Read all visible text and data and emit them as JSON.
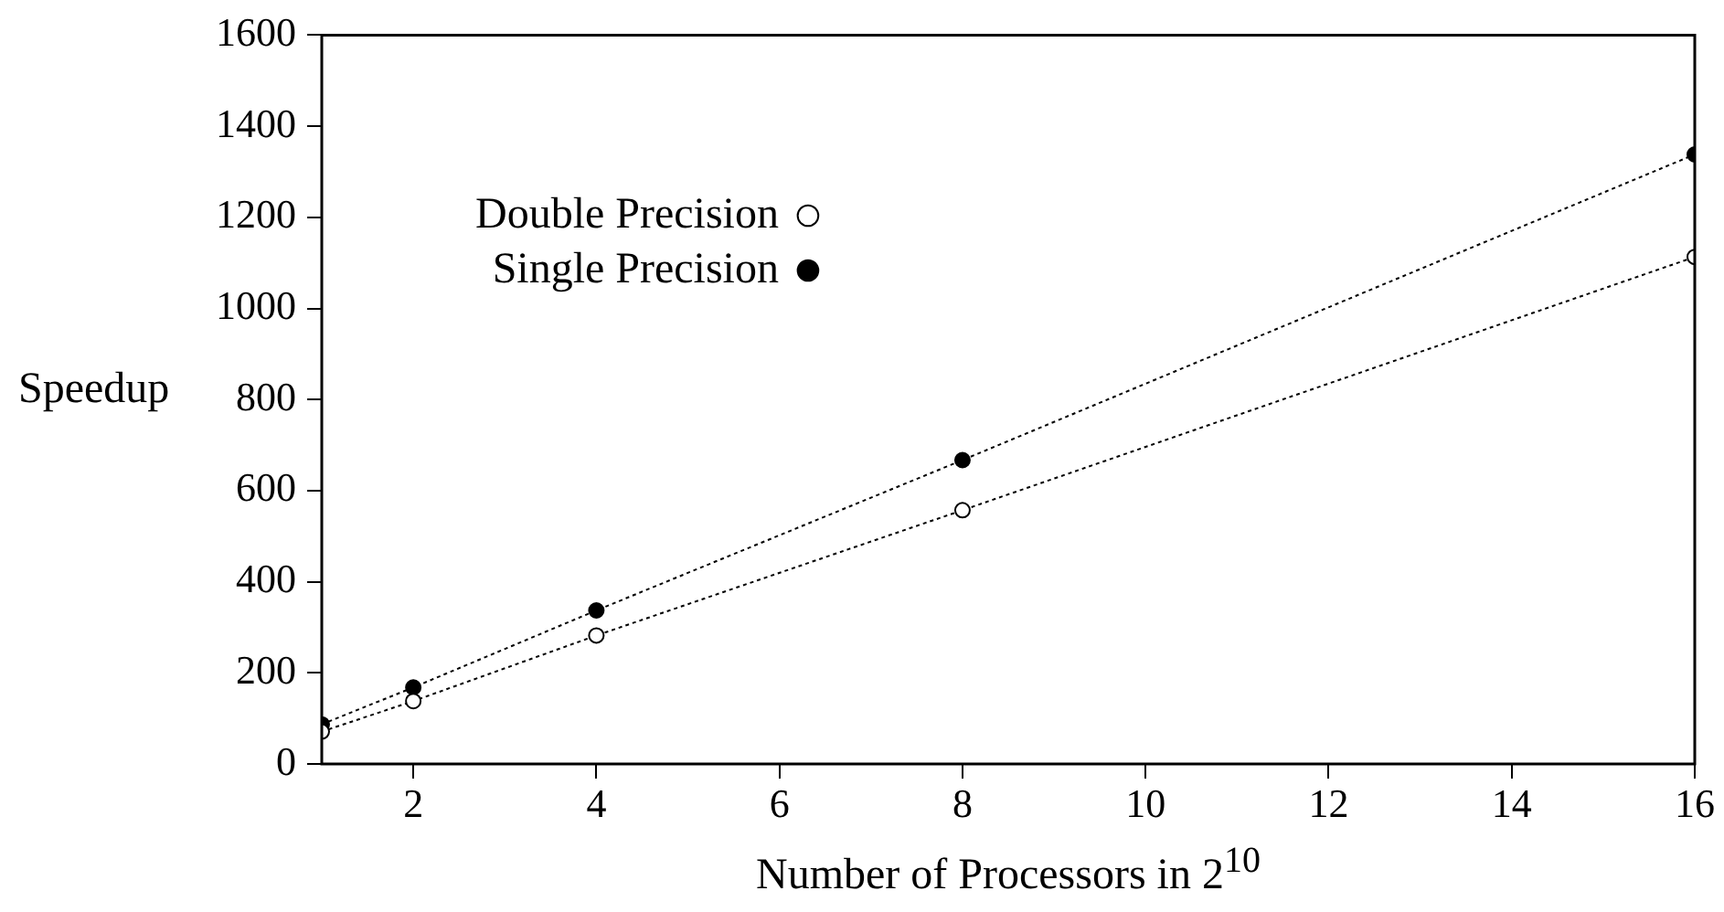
{
  "chart_data": {
    "type": "line",
    "xlabel": "Number of Processors in 2$^{10}$",
    "ylabel": "Speedup",
    "x": [
      1,
      2,
      4,
      8,
      16
    ],
    "series": [
      {
        "name": "Double Precision",
        "color": "#000000",
        "marker": "circle",
        "values": [
          71,
          138,
          282,
          557,
          1113
        ]
      },
      {
        "name": "Single Precision",
        "color": "#000000",
        "marker": "circle",
        "values": [
          87,
          168,
          337,
          667,
          1338
        ]
      }
    ],
    "xlim": [
      1,
      16
    ],
    "xticks": [
      2,
      4,
      6,
      8,
      10,
      12,
      14,
      16
    ],
    "ylim": [
      0,
      1600
    ],
    "yticks": [
      0,
      200,
      400,
      600,
      800,
      1000,
      1200,
      1400,
      1600
    ],
    "grid": false,
    "legend": "top left",
    "line_style": "dotted"
  }
}
